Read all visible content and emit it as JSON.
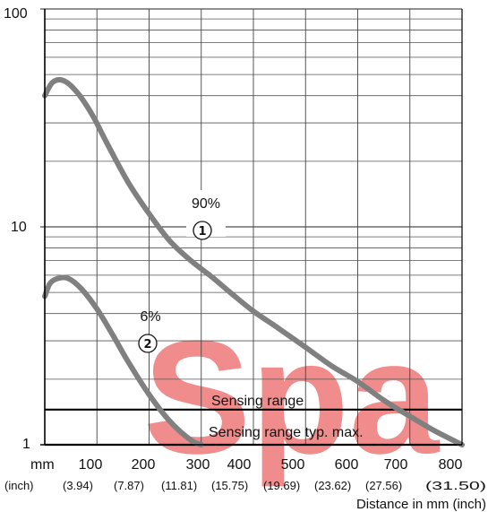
{
  "chart_data": {
    "type": "line",
    "y_scale": "log",
    "ylim": [
      1,
      100
    ],
    "xlim": [
      0,
      800
    ],
    "grid": true,
    "y_tick_labels": [
      "100",
      "10",
      "1"
    ],
    "x_unit_label": "mm",
    "x_unit_label_sub": "(inch)",
    "x_tick_labels": [
      "100",
      "200",
      "300",
      "400",
      "500",
      "600",
      "700",
      "800"
    ],
    "x_tick_sublabels": [
      "(3.94)",
      "(7.87)",
      "(11.81)",
      "(15.75)",
      "(19.69)",
      "(23.62)",
      "(27.56)",
      "(31.50)"
    ],
    "xlabel": "Distance in mm (inch)",
    "series": [
      {
        "marker": "①",
        "label": "90%",
        "color": "#808080",
        "x": [
          0,
          15,
          35,
          60,
          90,
          120,
          160,
          200,
          240,
          280,
          320,
          360,
          400,
          450,
          500,
          550,
          600,
          650,
          700,
          750,
          800
        ],
        "y": [
          40,
          46,
          47,
          42,
          33,
          24,
          16,
          11.5,
          8.6,
          7.0,
          5.9,
          4.9,
          4.1,
          3.4,
          2.8,
          2.3,
          1.95,
          1.6,
          1.35,
          1.15,
          1.0
        ]
      },
      {
        "marker": "②",
        "label": "6%",
        "color": "#808080",
        "x": [
          0,
          10,
          25,
          45,
          70,
          100,
          130,
          160,
          200,
          240,
          280,
          300
        ],
        "y": [
          4.8,
          5.5,
          5.8,
          5.8,
          5.2,
          4.2,
          3.2,
          2.4,
          1.7,
          1.28,
          1.05,
          1.0
        ]
      }
    ],
    "bands": [
      {
        "label": "Sensing range",
        "y": 1.45
      },
      {
        "label": "Sensing range typ. max.",
        "y": 1.0
      }
    ]
  },
  "watermark_text": "Spa"
}
